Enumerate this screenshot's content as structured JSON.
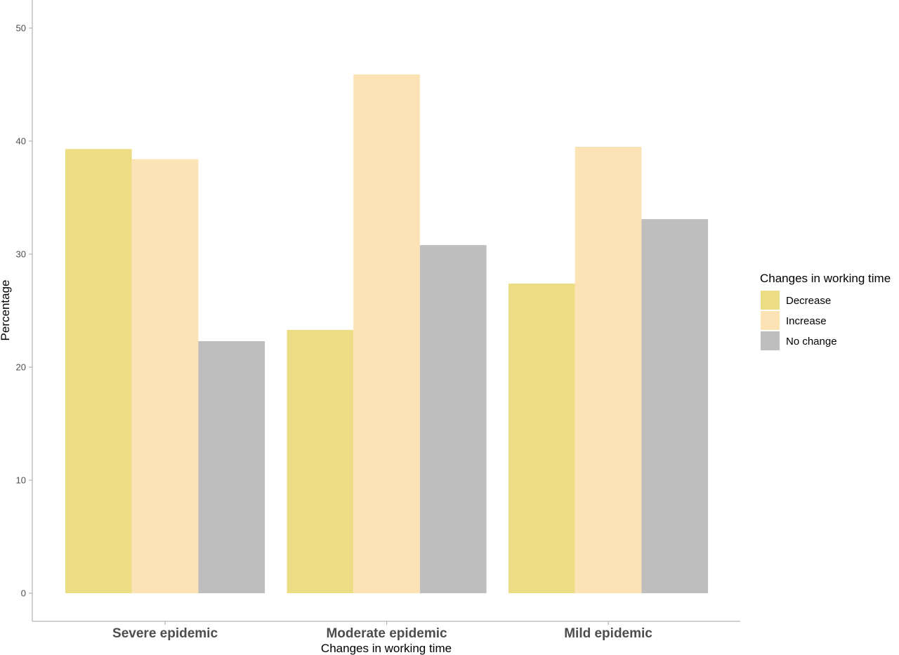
{
  "chart_data": {
    "type": "bar",
    "categories": [
      "Severe epidemic",
      "Moderate epidemic",
      "Mild epidemic"
    ],
    "series": [
      {
        "name": "Decrease",
        "values": [
          39.3,
          23.3,
          27.4
        ],
        "color": "#ecdc84"
      },
      {
        "name": "Increase",
        "values": [
          38.4,
          45.9,
          39.5
        ],
        "color": "#fce3b6"
      },
      {
        "name": "No change",
        "values": [
          22.3,
          30.8,
          33.1
        ],
        "color": "#bebebe"
      }
    ],
    "xlabel": "Changes in working time",
    "ylabel": "Percentage",
    "ylim": [
      0,
      52.5
    ],
    "yticks": [
      0,
      10,
      20,
      30,
      40,
      50
    ],
    "legend": {
      "title": "Changes in working time",
      "placement": "right"
    },
    "grid": false
  }
}
